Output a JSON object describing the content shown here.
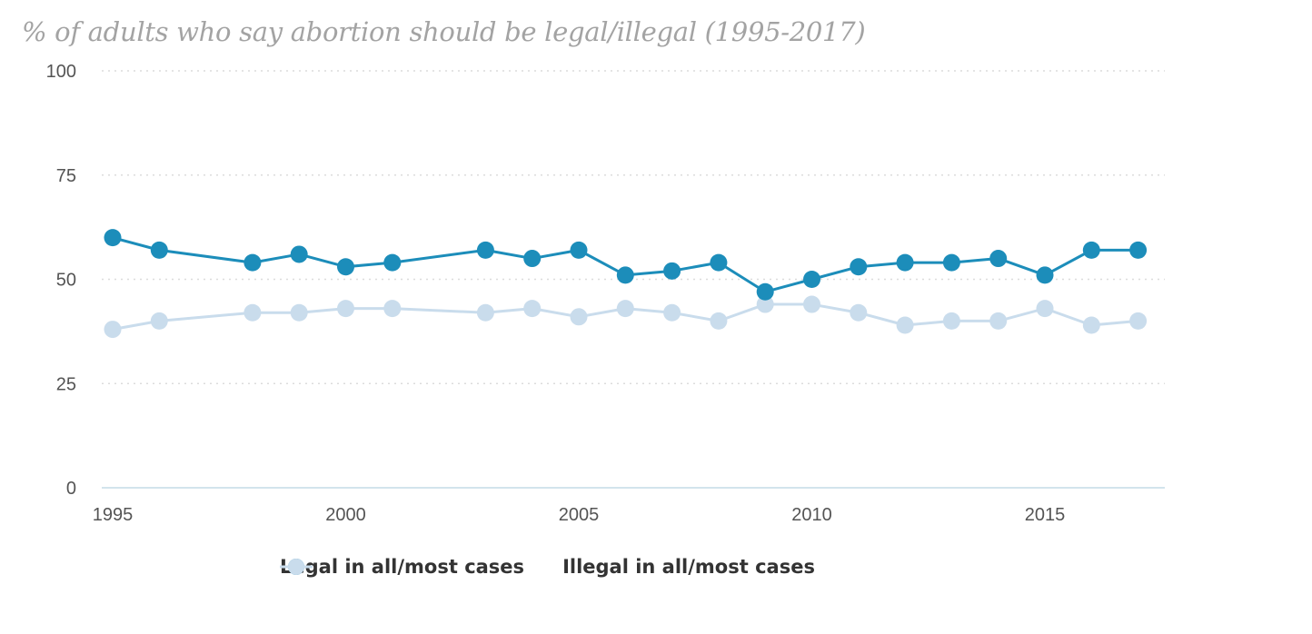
{
  "chart_data": {
    "type": "line",
    "title": "% of adults who say abortion should be legal/illegal (1995-2017)",
    "x": [
      1995,
      1996,
      1998,
      1999,
      2000,
      2001,
      2003,
      2004,
      2005,
      2006,
      2007,
      2008,
      2009,
      2010,
      2011,
      2012,
      2013,
      2014,
      2015,
      2016,
      2017
    ],
    "xlim": [
      1995,
      2017.3
    ],
    "ylim": [
      0,
      100
    ],
    "yticks": [
      0,
      25,
      50,
      75,
      100
    ],
    "xticks": [
      1995,
      2000,
      2005,
      2010,
      2015
    ],
    "series": [
      {
        "name": "Legal in all/most cases",
        "color": "#1c8dba",
        "values": [
          60,
          57,
          54,
          56,
          53,
          54,
          57,
          55,
          57,
          51,
          52,
          54,
          47,
          50,
          53,
          54,
          54,
          55,
          51,
          57,
          57
        ]
      },
      {
        "name": "Illegal in all/most cases",
        "color": "#c9dcec",
        "values": [
          38,
          40,
          42,
          42,
          43,
          43,
          42,
          43,
          41,
          43,
          42,
          40,
          44,
          44,
          42,
          39,
          40,
          40,
          43,
          39,
          40
        ]
      }
    ],
    "grid": true,
    "legend_position": "bottom-center"
  }
}
